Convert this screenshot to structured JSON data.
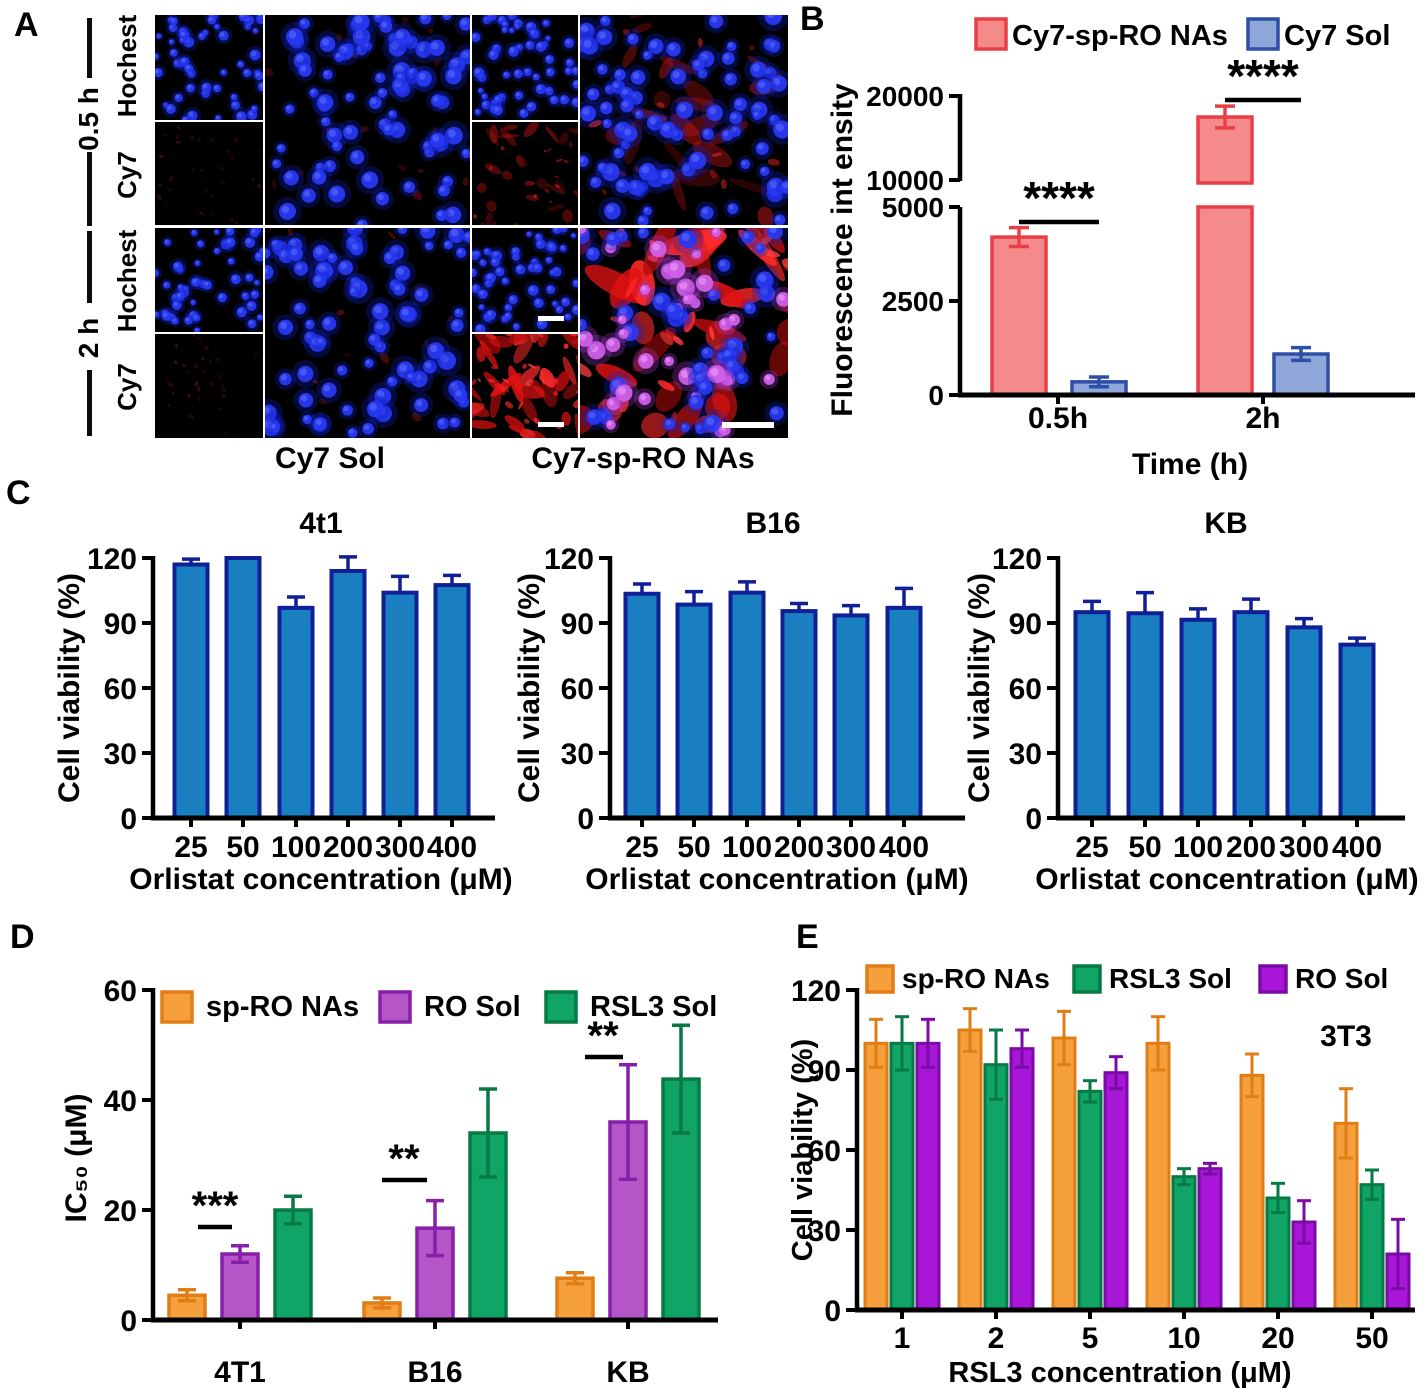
{
  "panels": {
    "a": "A",
    "b": "B",
    "c": "C",
    "d": "D",
    "e": "E"
  },
  "panel_a": {
    "time_groups": [
      {
        "label": "0.5 h",
        "channels": [
          "Hochest",
          "Cy7"
        ]
      },
      {
        "label": "2 h",
        "channels": [
          "Hochest",
          "Cy7"
        ]
      }
    ],
    "treatments": [
      "Cy7 Sol",
      "Cy7-sp-RO NAs"
    ],
    "tiles": [
      {
        "id": "sol-05-hochest",
        "treatment": "Cy7 Sol",
        "time": "0.5 h",
        "channel": "Hochest",
        "blue": "nuclei",
        "red": "none",
        "scalebar": false
      },
      {
        "id": "sol-05-cy7",
        "treatment": "Cy7 Sol",
        "time": "0.5 h",
        "channel": "Cy7",
        "blue": "none",
        "red": "faint",
        "scalebar": false
      },
      {
        "id": "sol-05-merged",
        "treatment": "Cy7 Sol",
        "time": "0.5 h",
        "channel": "merged",
        "blue": "nuclei",
        "red": "speckle",
        "scalebar": false
      },
      {
        "id": "nas-05-hochest",
        "treatment": "Cy7-sp-RO NAs",
        "time": "0.5 h",
        "channel": "Hochest",
        "blue": "nuclei",
        "red": "none",
        "scalebar": false
      },
      {
        "id": "nas-05-cy7",
        "treatment": "Cy7-sp-RO NAs",
        "time": "0.5 h",
        "channel": "Cy7",
        "blue": "none",
        "red": "medium",
        "scalebar": false
      },
      {
        "id": "nas-05-merged",
        "treatment": "Cy7-sp-RO NAs",
        "time": "0.5 h",
        "channel": "merged",
        "blue": "nuclei",
        "red": "medium",
        "scalebar": false
      },
      {
        "id": "sol-2-hochest",
        "treatment": "Cy7 Sol",
        "time": "2 h",
        "channel": "Hochest",
        "blue": "nuclei",
        "red": "none",
        "scalebar": false
      },
      {
        "id": "sol-2-cy7",
        "treatment": "Cy7 Sol",
        "time": "2 h",
        "channel": "Cy7",
        "blue": "none",
        "red": "faint",
        "scalebar": false
      },
      {
        "id": "sol-2-merged",
        "treatment": "Cy7 Sol",
        "time": "2 h",
        "channel": "merged",
        "blue": "nuclei",
        "red": "speckle",
        "scalebar": false
      },
      {
        "id": "nas-2-hochest",
        "treatment": "Cy7-sp-RO NAs",
        "time": "2 h",
        "channel": "Hochest",
        "blue": "nuclei",
        "red": "none",
        "scalebar": true
      },
      {
        "id": "nas-2-cy7",
        "treatment": "Cy7-sp-RO NAs",
        "time": "2 h",
        "channel": "Cy7",
        "blue": "none",
        "red": "strong",
        "scalebar": true
      },
      {
        "id": "nas-2-merged",
        "treatment": "Cy7-sp-RO NAs",
        "time": "2 h",
        "channel": "merged",
        "blue": "nuclei",
        "red": "strong",
        "pink": true,
        "scalebar": true
      }
    ]
  },
  "chart_data": [
    {
      "id": "panel_b",
      "type": "bar",
      "title": "",
      "ylabel": "Fluorescence int ensity",
      "xlabel": "Time (h)",
      "categories": [
        "0.5h",
        "2h"
      ],
      "yticks": [
        0,
        2500,
        5000,
        10000,
        20000
      ],
      "axis_break": {
        "lower_range": [
          0,
          5000
        ],
        "upper_range": [
          10000,
          20000
        ]
      },
      "legend_position": "top",
      "series": [
        {
          "name": "Cy7-sp-RO NAs",
          "fill": "#F58A8A",
          "stroke": "#E83F47",
          "values": [
            4200,
            17500
          ],
          "errors": [
            250,
            1300
          ]
        },
        {
          "name": "Cy7 Sol",
          "fill": "#8FA6D8",
          "stroke": "#2E4FA5",
          "values": [
            350,
            1090
          ],
          "errors": [
            130,
            170
          ]
        }
      ],
      "significance": [
        {
          "group": 0,
          "label": "****"
        },
        {
          "group": 1,
          "label": "****"
        }
      ]
    },
    {
      "id": "panel_c_4t1",
      "type": "bar",
      "title": "4t1",
      "ylabel": "Cell viability (%)",
      "xlabel": "Orlistat concentration (μM)",
      "categories": [
        "25",
        "50",
        "100",
        "200",
        "300",
        "400"
      ],
      "ylim": [
        0,
        120
      ],
      "yticks": [
        0,
        30,
        60,
        90,
        120
      ],
      "series": [
        {
          "name": "Orlistat",
          "fill": "#1A7FC0",
          "stroke": "#101F96",
          "values": [
            117,
            120,
            97,
            114,
            104,
            107.5
          ],
          "errors": [
            2.5,
            0,
            5,
            6.5,
            7.5,
            4.5
          ]
        }
      ]
    },
    {
      "id": "panel_c_b16",
      "type": "bar",
      "title": "B16",
      "ylabel": "Cell viability (%)",
      "xlabel": "Orlistat concentration (μM)",
      "categories": [
        "25",
        "50",
        "100",
        "200",
        "300",
        "400"
      ],
      "ylim": [
        0,
        120
      ],
      "yticks": [
        0,
        30,
        60,
        90,
        120
      ],
      "series": [
        {
          "name": "Orlistat",
          "fill": "#1A7FC0",
          "stroke": "#101F96",
          "values": [
            103.5,
            98.5,
            104,
            95.5,
            93.5,
            97
          ],
          "errors": [
            4.5,
            6,
            5,
            3.5,
            4.5,
            9
          ]
        }
      ]
    },
    {
      "id": "panel_c_kb",
      "type": "bar",
      "title": "KB",
      "ylabel": "Cell viability (%)",
      "xlabel": "Orlistat concentration (μM)",
      "categories": [
        "25",
        "50",
        "100",
        "200",
        "300",
        "400"
      ],
      "ylim": [
        0,
        120
      ],
      "yticks": [
        0,
        30,
        60,
        90,
        120
      ],
      "series": [
        {
          "name": "Orlistat",
          "fill": "#1A7FC0",
          "stroke": "#101F96",
          "values": [
            95,
            94.5,
            91.5,
            95,
            88,
            80
          ],
          "errors": [
            5,
            9.5,
            5,
            6,
            4,
            3
          ]
        }
      ]
    },
    {
      "id": "panel_d",
      "type": "bar",
      "title": "",
      "ylabel": "IC₅₀ (μM)",
      "xlabel": "",
      "categories": [
        "4T1",
        "B16",
        "KB"
      ],
      "ylim": [
        0,
        60
      ],
      "yticks": [
        0,
        20,
        40,
        60
      ],
      "legend_position": "top",
      "series": [
        {
          "name": "sp-RO NAs",
          "fill": "#F5A03D",
          "stroke": "#E07D15",
          "values": [
            4.5,
            3.1,
            7.6
          ],
          "errors": [
            1,
            0.9,
            1
          ]
        },
        {
          "name": "RO Sol",
          "fill": "#B455C8",
          "stroke": "#871FA8",
          "values": [
            12,
            16.7,
            36
          ],
          "errors": [
            1.5,
            5,
            10.4
          ]
        },
        {
          "name": "RSL3 Sol",
          "fill": "#10A567",
          "stroke": "#067A42",
          "values": [
            20,
            34,
            43.8
          ],
          "errors": [
            2.5,
            8,
            9.8
          ]
        }
      ],
      "significance": [
        {
          "group": 0,
          "between": [
            0,
            1
          ],
          "label": "***"
        },
        {
          "group": 1,
          "between": [
            0,
            1
          ],
          "label": "**"
        },
        {
          "group": 2,
          "between": [
            0,
            1
          ],
          "label": "**"
        }
      ]
    },
    {
      "id": "panel_e",
      "type": "bar",
      "title": "",
      "ylabel": "Cell viability (%)",
      "xlabel": "RSL3 concentration (μM)",
      "annotation": "3T3",
      "categories": [
        "1",
        "2",
        "5",
        "10",
        "20",
        "50"
      ],
      "ylim": [
        0,
        120
      ],
      "yticks": [
        0,
        30,
        60,
        90,
        120
      ],
      "legend_position": "top",
      "series": [
        {
          "name": "sp-RO NAs",
          "fill": "#F5A03D",
          "stroke": "#E07D15",
          "values": [
            100,
            105,
            102,
            100,
            88,
            70
          ],
          "errors": [
            9,
            8,
            10,
            10,
            8,
            13
          ]
        },
        {
          "name": "RSL3 Sol",
          "fill": "#10A567",
          "stroke": "#067A42",
          "values": [
            100,
            92,
            82,
            50,
            42,
            47
          ],
          "errors": [
            10,
            13,
            4,
            3,
            5.5,
            5.5
          ]
        },
        {
          "name": "RO Sol",
          "fill": "#A816D8",
          "stroke": "#7A0BA4",
          "values": [
            100,
            98,
            89,
            53,
            33,
            21
          ],
          "errors": [
            9,
            7,
            6,
            2,
            8,
            13
          ]
        }
      ]
    }
  ]
}
